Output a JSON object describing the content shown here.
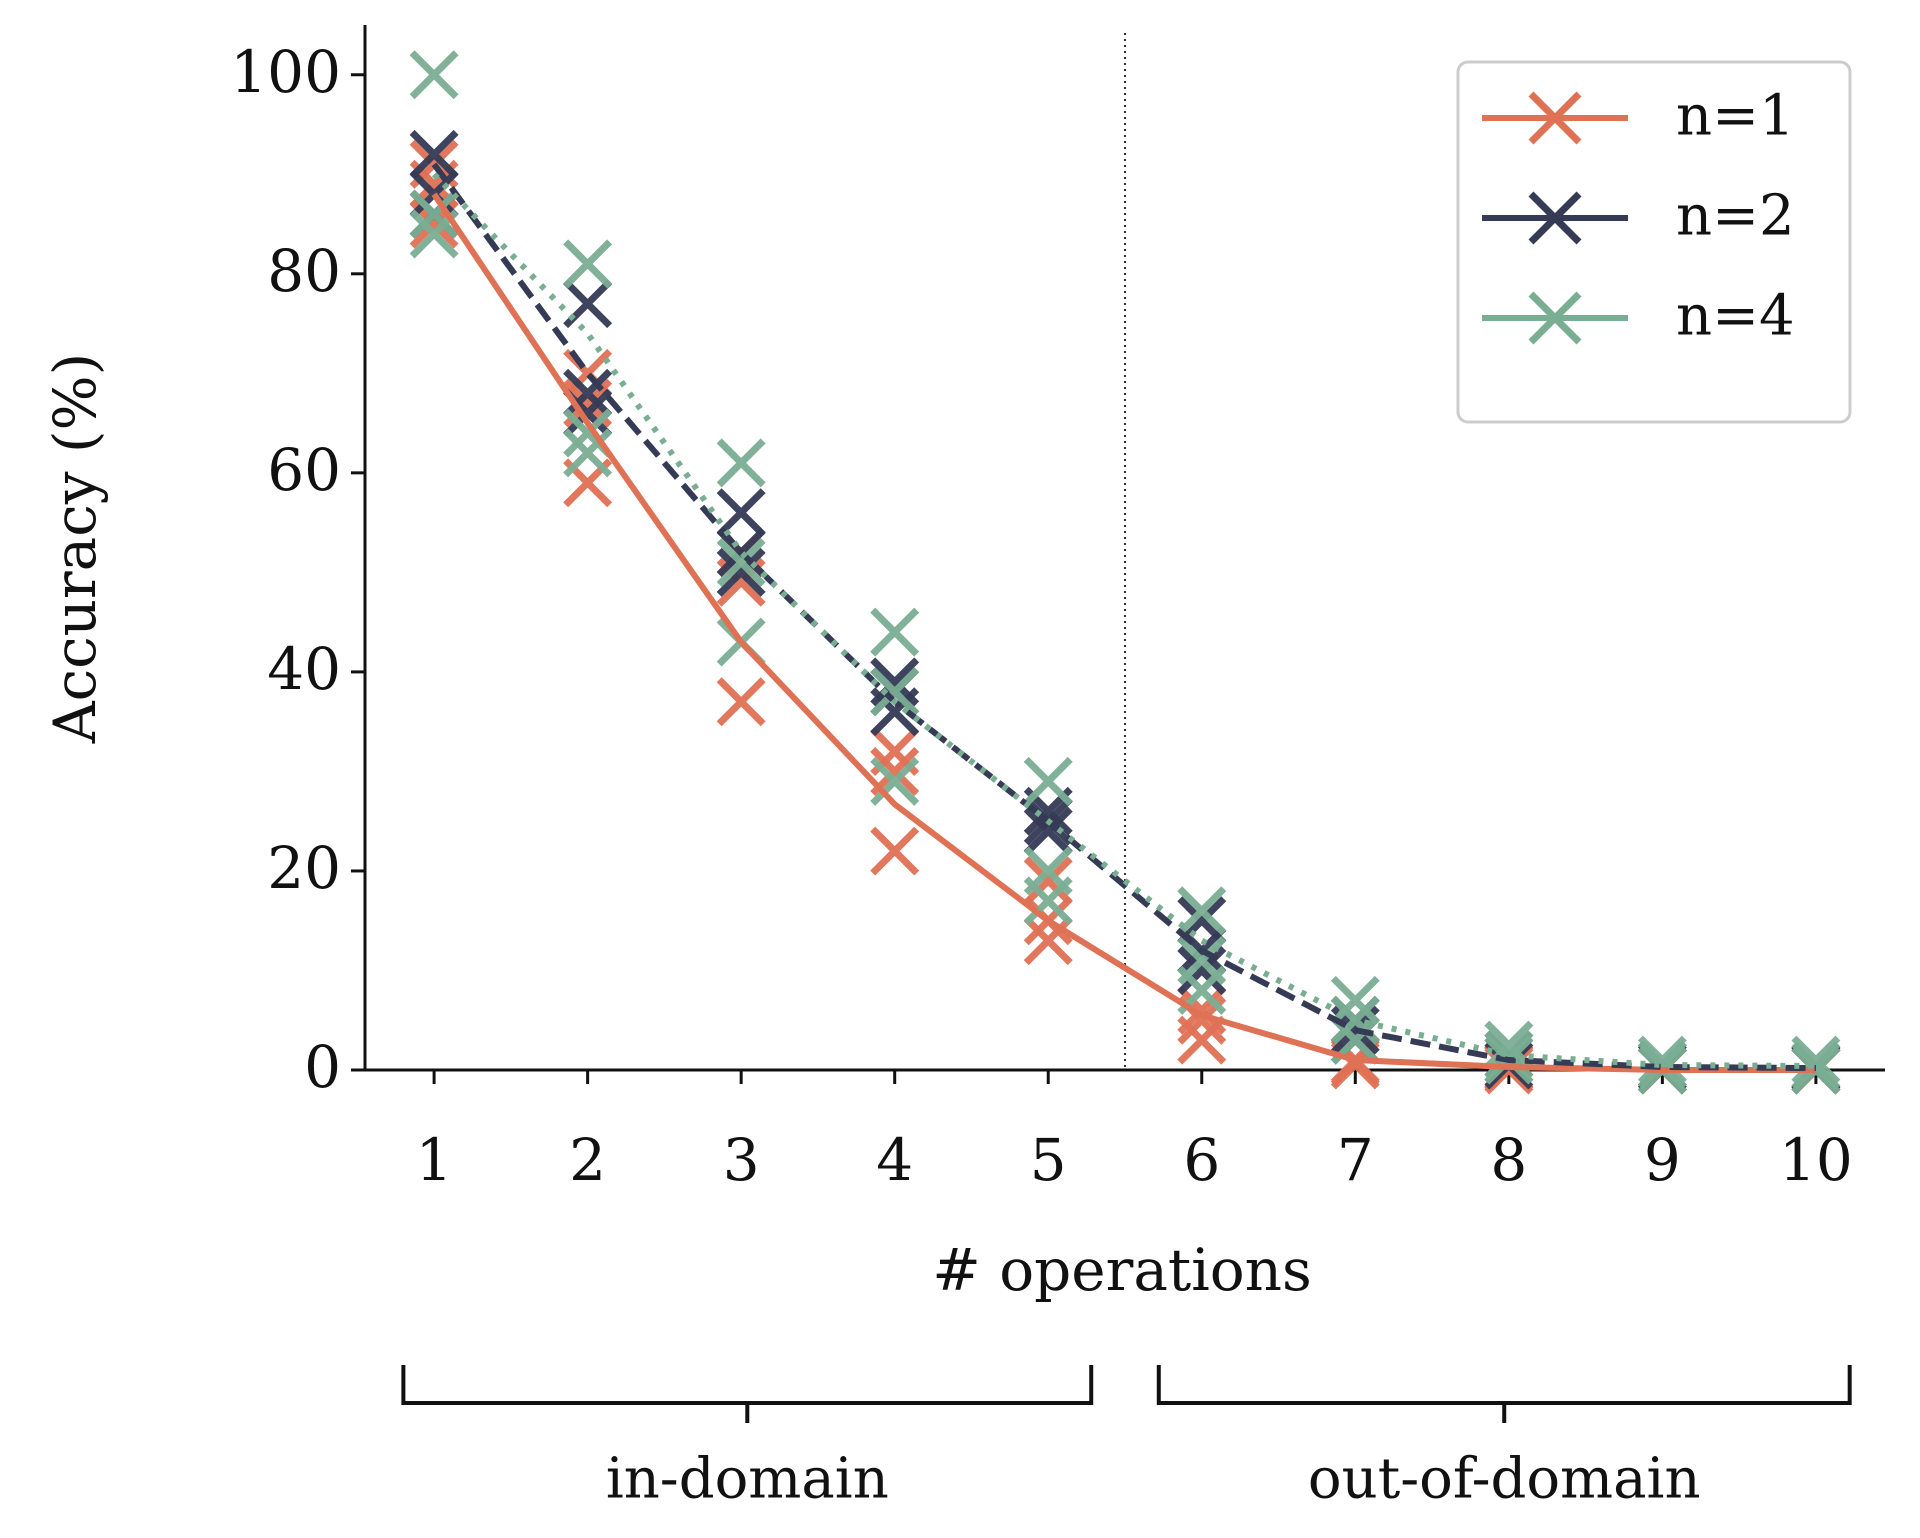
{
  "chart_data": {
    "type": "line",
    "x_label": "# operations",
    "y_label": "Accuracy (%)",
    "x": [
      1,
      2,
      3,
      4,
      5,
      6,
      7,
      8,
      9,
      10
    ],
    "xlim": [
      0.55,
      10.45
    ],
    "ylim": [
      0,
      105
    ],
    "xticks": [
      1,
      2,
      3,
      4,
      5,
      6,
      7,
      8,
      9,
      10
    ],
    "yticks": [
      0,
      20,
      40,
      60,
      80,
      100
    ],
    "divider_x": 5.5,
    "legend": "upper right",
    "series": [
      {
        "name": "n=1",
        "color": "#df7155",
        "dash": "solid",
        "values": [
          88,
          65,
          43,
          26.7,
          15,
          5.5,
          1,
          0.3,
          0,
          0
        ],
        "runs": [
          [
            91,
            70,
            52,
            32,
            19,
            6,
            1,
            0.3,
            0,
            0
          ],
          [
            89,
            67,
            49,
            30,
            15,
            5,
            0.8,
            0.2,
            0,
            0
          ],
          [
            85,
            59,
            37,
            22,
            13,
            3,
            0.5,
            0,
            0,
            0
          ]
        ]
      },
      {
        "name": "n=2",
        "color": "#353a55",
        "dash": "dashed",
        "values": [
          91,
          70,
          52,
          37,
          25,
          12,
          4,
          1,
          0.3,
          0.2
        ],
        "runs": [
          [
            92,
            77,
            56,
            39,
            26,
            15,
            5,
            1.5,
            0.5,
            0.3
          ],
          [
            88,
            68,
            52,
            38,
            25,
            12,
            4,
            1,
            0.3,
            0.2
          ],
          [
            86,
            66,
            50,
            36,
            24,
            10,
            3,
            0.5,
            0,
            0
          ]
        ]
      },
      {
        "name": "n=4",
        "color": "#7aae93",
        "dash": "dotted",
        "values": [
          90,
          74,
          52,
          37,
          25,
          13,
          5,
          1.5,
          0.5,
          0.4
        ],
        "runs": [
          [
            100,
            81,
            61,
            44,
            29,
            16,
            7,
            2.5,
            1,
            1
          ],
          [
            86,
            64,
            51,
            38,
            20,
            11,
            5,
            1.5,
            0.5,
            0.4
          ],
          [
            84,
            62,
            43,
            29,
            17,
            8,
            3,
            1,
            0,
            0
          ]
        ]
      }
    ],
    "annotations": [
      {
        "text": "in-domain",
        "range": [
          0.8,
          5.28
        ]
      },
      {
        "text": "out-of-domain",
        "range": [
          5.72,
          10.22
        ]
      }
    ]
  }
}
